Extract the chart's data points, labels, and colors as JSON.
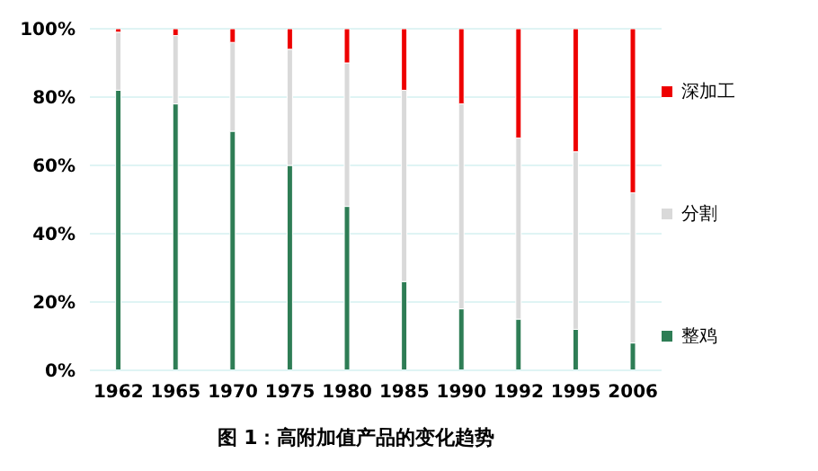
{
  "chart_data": {
    "type": "bar",
    "title": "图 1：高附加值产品的变化趋势",
    "stacked": true,
    "categories": [
      "1962",
      "1965",
      "1970",
      "1975",
      "1980",
      "1985",
      "1990",
      "1992",
      "1995",
      "2006"
    ],
    "series": [
      {
        "name": "整鸡",
        "color": "#2e7d55",
        "values": [
          82,
          78,
          70,
          60,
          48,
          26,
          18,
          15,
          12,
          8
        ]
      },
      {
        "name": "分割",
        "color": "#d9d9d9",
        "values": [
          17,
          20,
          26,
          34,
          42,
          56,
          60,
          53,
          52,
          44
        ]
      },
      {
        "name": "深加工",
        "color": "#ee0000",
        "values": [
          1,
          2,
          4,
          6,
          10,
          18,
          22,
          32,
          36,
          48
        ]
      }
    ],
    "ylim": [
      0,
      100
    ],
    "yticks": [
      {
        "value": 0,
        "label": "0%"
      },
      {
        "value": 20,
        "label": "20%"
      },
      {
        "value": 40,
        "label": "40%"
      },
      {
        "value": 60,
        "label": "60%"
      },
      {
        "value": 80,
        "label": "80%"
      },
      {
        "value": 100,
        "label": "100%"
      }
    ],
    "grid": "y",
    "legend": "right"
  }
}
